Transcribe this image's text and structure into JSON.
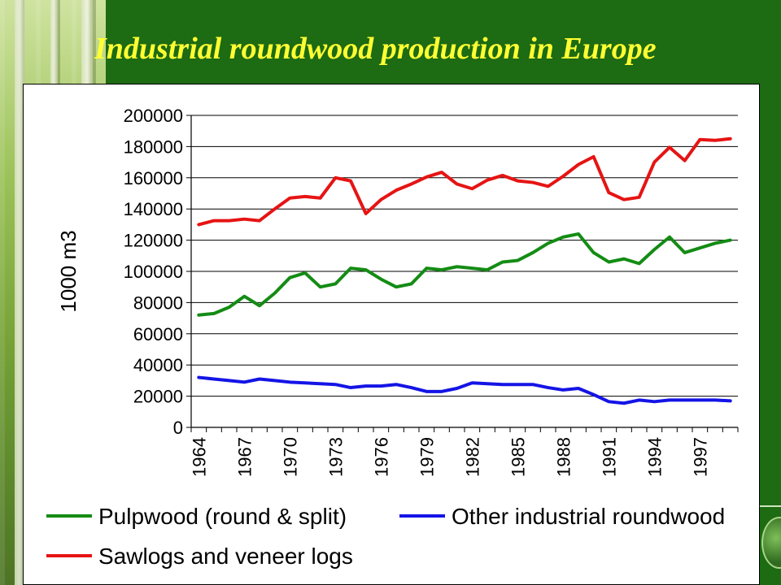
{
  "slide": {
    "title": "Industrial roundwood production in Europe"
  },
  "colors": {
    "background": "#1d6b12",
    "title": "#ffff33"
  },
  "chart_data": {
    "type": "line",
    "title": "",
    "xlabel": "",
    "ylabel": "1000 m3",
    "ylim": [
      0,
      200000
    ],
    "yticks": [
      0,
      20000,
      40000,
      60000,
      80000,
      100000,
      120000,
      140000,
      160000,
      180000,
      200000
    ],
    "ytick_labels": [
      "0",
      "20000",
      "40000",
      "60000",
      "80000",
      "100000",
      "120000",
      "140000",
      "160000",
      "180000",
      "200000"
    ],
    "xticks": [
      "1964",
      "1967",
      "1970",
      "1973",
      "1976",
      "1979",
      "1982",
      "1985",
      "1988",
      "1991",
      "1994",
      "1997"
    ],
    "grid": "horizontal",
    "legend": "bottom",
    "x": [
      1964,
      1965,
      1966,
      1967,
      1968,
      1969,
      1970,
      1971,
      1972,
      1973,
      1974,
      1975,
      1976,
      1977,
      1978,
      1979,
      1980,
      1981,
      1982,
      1983,
      1984,
      1985,
      1986,
      1987,
      1988,
      1989,
      1990,
      1991,
      1992,
      1993,
      1994,
      1995,
      1996,
      1997,
      1998,
      1999
    ],
    "series": [
      {
        "name": "Pulpwood (round & split)",
        "color": "#148c14",
        "values": [
          72000,
          73000,
          77000,
          84000,
          78000,
          86000,
          96000,
          99000,
          90000,
          92000,
          102000,
          101000,
          95000,
          90000,
          92000,
          102000,
          101000,
          103000,
          102000,
          101000,
          106000,
          107000,
          112000,
          118000,
          122000,
          124000,
          112000,
          106000,
          108000,
          105000,
          114000,
          122000,
          112000,
          115000,
          118000,
          120000
        ]
      },
      {
        "name": "Other industrial roundwood",
        "color": "#1414e6",
        "values": [
          32000,
          31000,
          30000,
          29000,
          31000,
          30000,
          29000,
          28500,
          28000,
          27500,
          25500,
          26500,
          26500,
          27500,
          25500,
          23000,
          23000,
          25000,
          28500,
          28000,
          27500,
          27500,
          27500,
          25500,
          24000,
          25000,
          21000,
          16500,
          15500,
          17500,
          16500,
          17500,
          17500,
          17500,
          17500,
          17000
        ]
      },
      {
        "name": "Sawlogs and veneer logs",
        "color": "#e61414",
        "values": [
          130000,
          132500,
          132500,
          133500,
          132500,
          140000,
          147000,
          148000,
          147000,
          160000,
          158000,
          137000,
          146000,
          152000,
          156000,
          160500,
          163500,
          156000,
          153000,
          158500,
          161500,
          158000,
          157000,
          154500,
          161000,
          168500,
          173500,
          150500,
          146000,
          147500,
          170000,
          179500,
          171000,
          184500,
          184000,
          185000
        ]
      }
    ]
  }
}
